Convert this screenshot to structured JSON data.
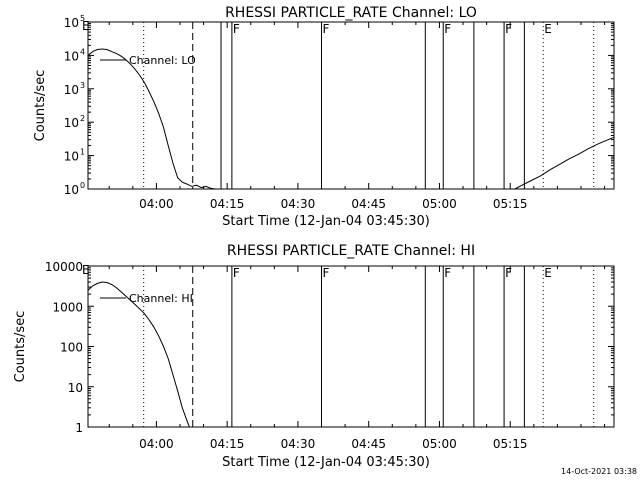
{
  "chart_data": [
    {
      "type": "line",
      "title": "RHESSI PARTICLE_RATE Channel: LO",
      "xlabel": "Start Time (12-Jan-04 03:45:30)",
      "ylabel": "Counts/sec",
      "yscale": "log",
      "ylim": [
        1,
        100000
      ],
      "xlim_min": [
        0,
        95.5
      ],
      "x_unit": "minutes from 03:45:30",
      "x_ticks": [
        {
          "t": 14.5,
          "label": "04:00"
        },
        {
          "t": 29.5,
          "label": "04:15"
        },
        {
          "t": 44.5,
          "label": "04:30"
        },
        {
          "t": 59.5,
          "label": "04:45"
        },
        {
          "t": 74.5,
          "label": "05:00"
        },
        {
          "t": 89.5,
          "label": "05:15"
        }
      ],
      "y_ticks": [
        {
          "v": 1,
          "label": "10",
          "exp": "0"
        },
        {
          "v": 10,
          "label": "10",
          "exp": "1"
        },
        {
          "v": 100,
          "label": "10",
          "exp": "2"
        },
        {
          "v": 1000,
          "label": "10",
          "exp": "3"
        },
        {
          "v": 10000,
          "label": "10",
          "exp": "4"
        },
        {
          "v": 100000,
          "label": "10",
          "exp": "5"
        }
      ],
      "legend": {
        "label": "Channel: LO",
        "placement": "top-left"
      },
      "series": [
        {
          "name": "Channel: LO",
          "segments": [
            [
              [
                0,
                10000
              ],
              [
                1,
                13000
              ],
              [
                2,
                15000
              ],
              [
                3,
                15500
              ],
              [
                4,
                15000
              ],
              [
                5,
                13000
              ],
              [
                6,
                11500
              ],
              [
                7,
                9500
              ],
              [
                8,
                7500
              ],
              [
                9,
                5500
              ],
              [
                10,
                3800
              ],
              [
                11,
                2500
              ],
              [
                12,
                1500
              ],
              [
                13,
                800
              ],
              [
                14,
                400
              ],
              [
                15,
                180
              ],
              [
                16,
                70
              ],
              [
                17,
                20
              ],
              [
                18,
                6
              ],
              [
                19,
                2.2
              ],
              [
                20,
                1.6
              ],
              [
                21,
                1.4
              ],
              [
                22,
                1.2
              ],
              [
                23,
                1.3
              ],
              [
                24,
                1.1
              ],
              [
                25,
                1.2
              ],
              [
                26,
                1.05
              ],
              [
                27,
                1
              ]
            ],
            [
              [
                90.5,
                1
              ],
              [
                92,
                1.3
              ],
              [
                94,
                1.8
              ],
              [
                96,
                2.5
              ],
              [
                98,
                3.8
              ],
              [
                100,
                5.5
              ],
              [
                102,
                8
              ],
              [
                104,
                11
              ],
              [
                106,
                16
              ],
              [
                108,
                22
              ],
              [
                110,
                29
              ],
              [
                111.5,
                35
              ]
            ]
          ]
        }
      ],
      "markers": [
        {
          "t": 11.8,
          "style": "dotted"
        },
        {
          "t": 22.2,
          "style": "dashed"
        },
        {
          "t": 28.2,
          "style": "solid"
        },
        {
          "t": 30.5,
          "style": "solid",
          "label": "F"
        },
        {
          "t": 49.5,
          "style": "solid",
          "label": "F"
        },
        {
          "t": 71.5,
          "style": "solid"
        },
        {
          "t": 75.3,
          "style": "solid",
          "label": "F"
        },
        {
          "t": 81.8,
          "style": "solid"
        },
        {
          "t": 88.2,
          "style": "solid",
          "label": "F"
        },
        {
          "t": 92.5,
          "style": "solid"
        },
        {
          "t": 96.5,
          "style": "dotted",
          "label": "E"
        },
        {
          "t": 107.2,
          "style": "dotted"
        }
      ],
      "corner_label": "E"
    },
    {
      "type": "line",
      "title": "RHESSI PARTICLE_RATE Channel: HI",
      "xlabel": "Start Time (12-Jan-04 03:45:30)",
      "ylabel": "Counts/sec",
      "yscale": "log",
      "ylim": [
        1,
        10000
      ],
      "x_unit": "minutes from 03:45:30",
      "x_ticks": [
        {
          "t": 14.5,
          "label": "04:00"
        },
        {
          "t": 29.5,
          "label": "04:15"
        },
        {
          "t": 44.5,
          "label": "04:30"
        },
        {
          "t": 59.5,
          "label": "04:45"
        },
        {
          "t": 74.5,
          "label": "05:00"
        },
        {
          "t": 89.5,
          "label": "05:15"
        }
      ],
      "y_ticks": [
        {
          "v": 1,
          "label": "1"
        },
        {
          "v": 10,
          "label": "10"
        },
        {
          "v": 100,
          "label": "100"
        },
        {
          "v": 1000,
          "label": "1000"
        },
        {
          "v": 10000,
          "label": "10000"
        }
      ],
      "legend": {
        "label": "Channel: HI",
        "placement": "top-left"
      },
      "series": [
        {
          "name": "Channel: HI",
          "segments": [
            [
              [
                0,
                2500
              ],
              [
                1,
                3200
              ],
              [
                2,
                3700
              ],
              [
                3,
                4000
              ],
              [
                4,
                3900
              ],
              [
                5,
                3500
              ],
              [
                6,
                2900
              ],
              [
                7,
                2300
              ],
              [
                8,
                1800
              ],
              [
                9,
                1400
              ],
              [
                10,
                1100
              ],
              [
                11,
                850
              ],
              [
                12,
                650
              ],
              [
                13,
                450
              ],
              [
                14,
                300
              ],
              [
                15,
                180
              ],
              [
                16,
                100
              ],
              [
                17,
                50
              ],
              [
                18,
                20
              ],
              [
                19,
                8
              ],
              [
                20,
                3
              ],
              [
                21,
                1.4
              ],
              [
                21.5,
                1
              ]
            ]
          ]
        }
      ],
      "markers": [
        {
          "t": 11.8,
          "style": "dotted"
        },
        {
          "t": 22.2,
          "style": "dashed"
        },
        {
          "t": 30.5,
          "style": "solid",
          "label": "F"
        },
        {
          "t": 49.5,
          "style": "solid",
          "label": "F"
        },
        {
          "t": 71.5,
          "style": "solid"
        },
        {
          "t": 75.3,
          "style": "solid",
          "label": "F"
        },
        {
          "t": 81.8,
          "style": "solid"
        },
        {
          "t": 88.2,
          "style": "solid",
          "label": "F"
        },
        {
          "t": 92.5,
          "style": "solid"
        },
        {
          "t": 96.5,
          "style": "dotted",
          "label": "E"
        },
        {
          "t": 107.2,
          "style": "dotted"
        }
      ],
      "corner_label": "E"
    }
  ],
  "footer": {
    "timestamp": "14-Oct-2021 03:38"
  }
}
